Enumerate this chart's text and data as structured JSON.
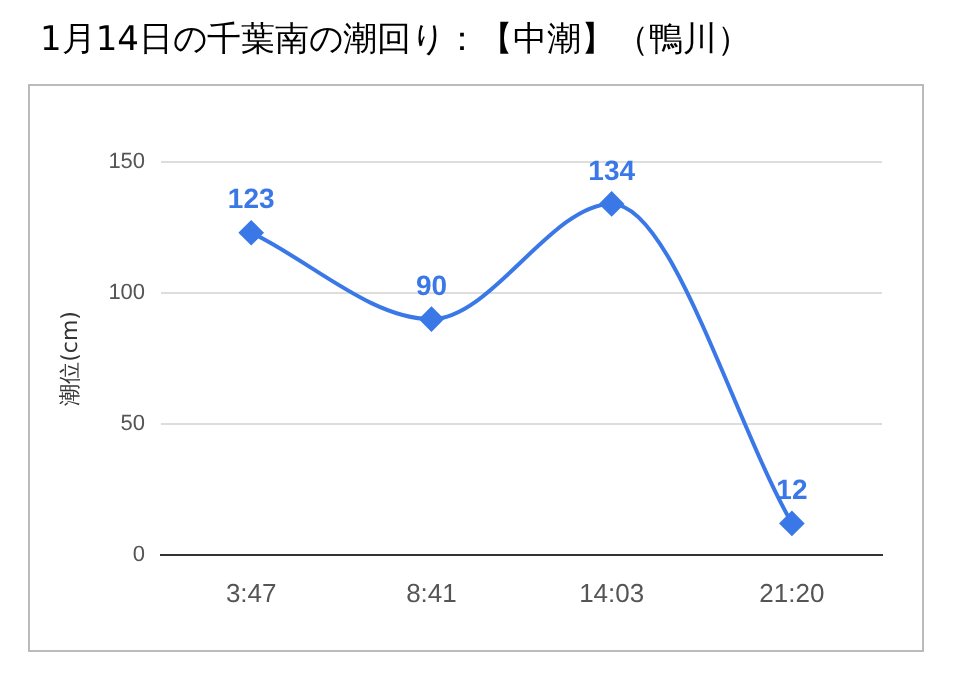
{
  "chart_data": {
    "type": "line",
    "title": "1月14日の千葉南の潮回り：【中潮】（鴨川）",
    "ylabel": "潮位(cm)",
    "categories": [
      "3:47",
      "8:41",
      "14:03",
      "21:20"
    ],
    "series": [
      {
        "color": "#3b78e7",
        "values": [
          123,
          90,
          134,
          12
        ]
      }
    ],
    "ylim": [
      0,
      150
    ],
    "yticks": [
      0,
      50,
      100,
      150
    ],
    "grid": "y",
    "legend": false,
    "marker": "diamond",
    "line_style": "solid",
    "data_labels": true
  }
}
